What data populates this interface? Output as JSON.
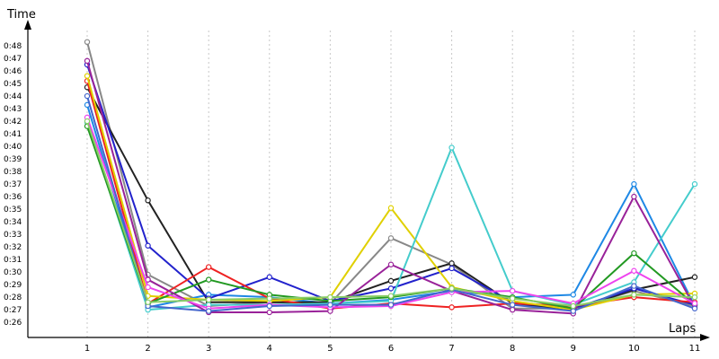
{
  "chart_data": {
    "type": "line",
    "title": "",
    "xlabel": "Laps",
    "ylabel": "Time",
    "x": [
      1,
      2,
      3,
      4,
      5,
      6,
      7,
      8,
      9,
      10,
      11
    ],
    "x_tick_labels": [
      "1",
      "2",
      "3",
      "4",
      "5",
      "6",
      "7",
      "8",
      "9",
      "10",
      "11"
    ],
    "y_tick_values": [
      26,
      27,
      28,
      29,
      30,
      31,
      32,
      33,
      34,
      35,
      36,
      37,
      38,
      39,
      40,
      41,
      42,
      43,
      44,
      45,
      46,
      47,
      48
    ],
    "y_tick_labels": [
      "0:26",
      "0:27",
      "0:28",
      "0:29",
      "0:30",
      "0:31",
      "0:32",
      "0:33",
      "0:34",
      "0:35",
      "0:36",
      "0:37",
      "0:38",
      "0:39",
      "0:40",
      "0:41",
      "0:42",
      "0:43",
      "0:44",
      "0:45",
      "0:46",
      "0:47",
      "0:48"
    ],
    "ylim": [
      24.8,
      49.5
    ],
    "grid": "vertical",
    "legend": "none",
    "series": [
      {
        "color": "#888888",
        "values": [
          48.3,
          29.8,
          27.3,
          27.6,
          27.5,
          32.7,
          30.6,
          27.1,
          27.1,
          28.5,
          27.3
        ]
      },
      {
        "color": "#1e88e5",
        "values": [
          43.3,
          27.2,
          28.2,
          28.0,
          27.5,
          27.8,
          28.5,
          28.0,
          28.2,
          37.0,
          27.3
        ]
      },
      {
        "color": "#222222",
        "values": [
          44.7,
          35.7,
          27.6,
          27.6,
          27.6,
          29.3,
          30.7,
          27.5,
          27.0,
          28.6,
          29.6
        ]
      },
      {
        "color": "#2222cc",
        "values": [
          46.5,
          32.1,
          27.9,
          29.6,
          27.7,
          28.7,
          30.3,
          27.6,
          27.1,
          28.7,
          27.4
        ]
      },
      {
        "color": "#ee2222",
        "values": [
          45.2,
          27.5,
          30.4,
          27.9,
          27.1,
          27.5,
          27.2,
          27.5,
          27.3,
          28.0,
          27.6
        ]
      },
      {
        "color": "#e0d000",
        "values": [
          45.6,
          28.1,
          27.8,
          27.7,
          28.0,
          35.1,
          28.8,
          27.7,
          27.0,
          28.2,
          28.3
        ]
      },
      {
        "color": "#44cccc",
        "values": [
          41.9,
          27.0,
          27.4,
          27.4,
          27.5,
          27.7,
          39.9,
          28.5,
          27.4,
          29.2,
          37.0
        ]
      },
      {
        "color": "#229922",
        "values": [
          41.6,
          27.5,
          29.4,
          28.2,
          27.7,
          28.0,
          28.7,
          28.0,
          27.1,
          31.5,
          27.4
        ]
      },
      {
        "color": "#992299",
        "values": [
          46.8,
          29.4,
          26.8,
          26.8,
          26.9,
          30.6,
          28.5,
          27.0,
          26.7,
          36.0,
          27.2
        ]
      },
      {
        "color": "#ee44ee",
        "values": [
          42.3,
          28.8,
          27.1,
          27.4,
          27.2,
          27.3,
          28.4,
          28.5,
          27.5,
          30.1,
          27.5
        ]
      },
      {
        "color": "#4466cc",
        "values": [
          44.0,
          27.3,
          26.9,
          27.3,
          27.4,
          27.4,
          28.6,
          27.4,
          26.9,
          28.9,
          27.1
        ]
      },
      {
        "color": "#88cc66",
        "values": [
          42.0,
          27.6,
          27.8,
          27.9,
          28.0,
          28.1,
          28.7,
          27.9,
          27.3,
          28.2,
          28.0
        ]
      }
    ]
  }
}
